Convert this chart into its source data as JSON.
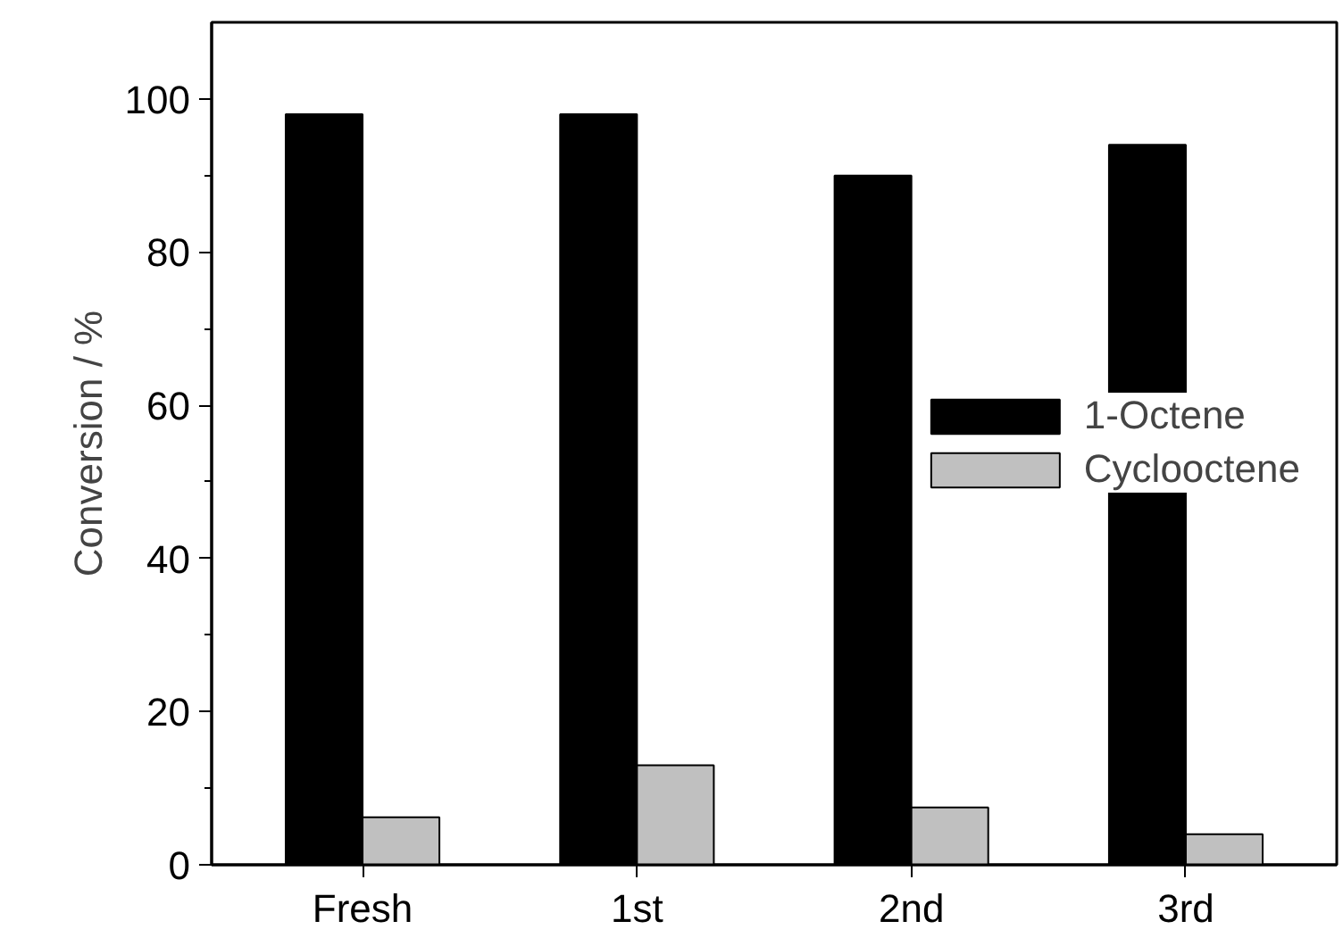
{
  "chart_data": {
    "type": "bar",
    "ylabel": "Conversion / %",
    "categories": [
      "Fresh",
      "1st",
      "2nd",
      "3rd"
    ],
    "series": [
      {
        "name": "1-Octene",
        "color": "#000000",
        "values": [
          98,
          98,
          90,
          94
        ]
      },
      {
        "name": "Cyclooctene",
        "color": "#c0c0c0",
        "values": [
          6.2,
          13,
          7.5,
          4
        ]
      }
    ],
    "ylim": [
      0,
      110
    ],
    "yticks": [
      0,
      20,
      40,
      60,
      80,
      100
    ],
    "grid": false,
    "legend": "right"
  }
}
